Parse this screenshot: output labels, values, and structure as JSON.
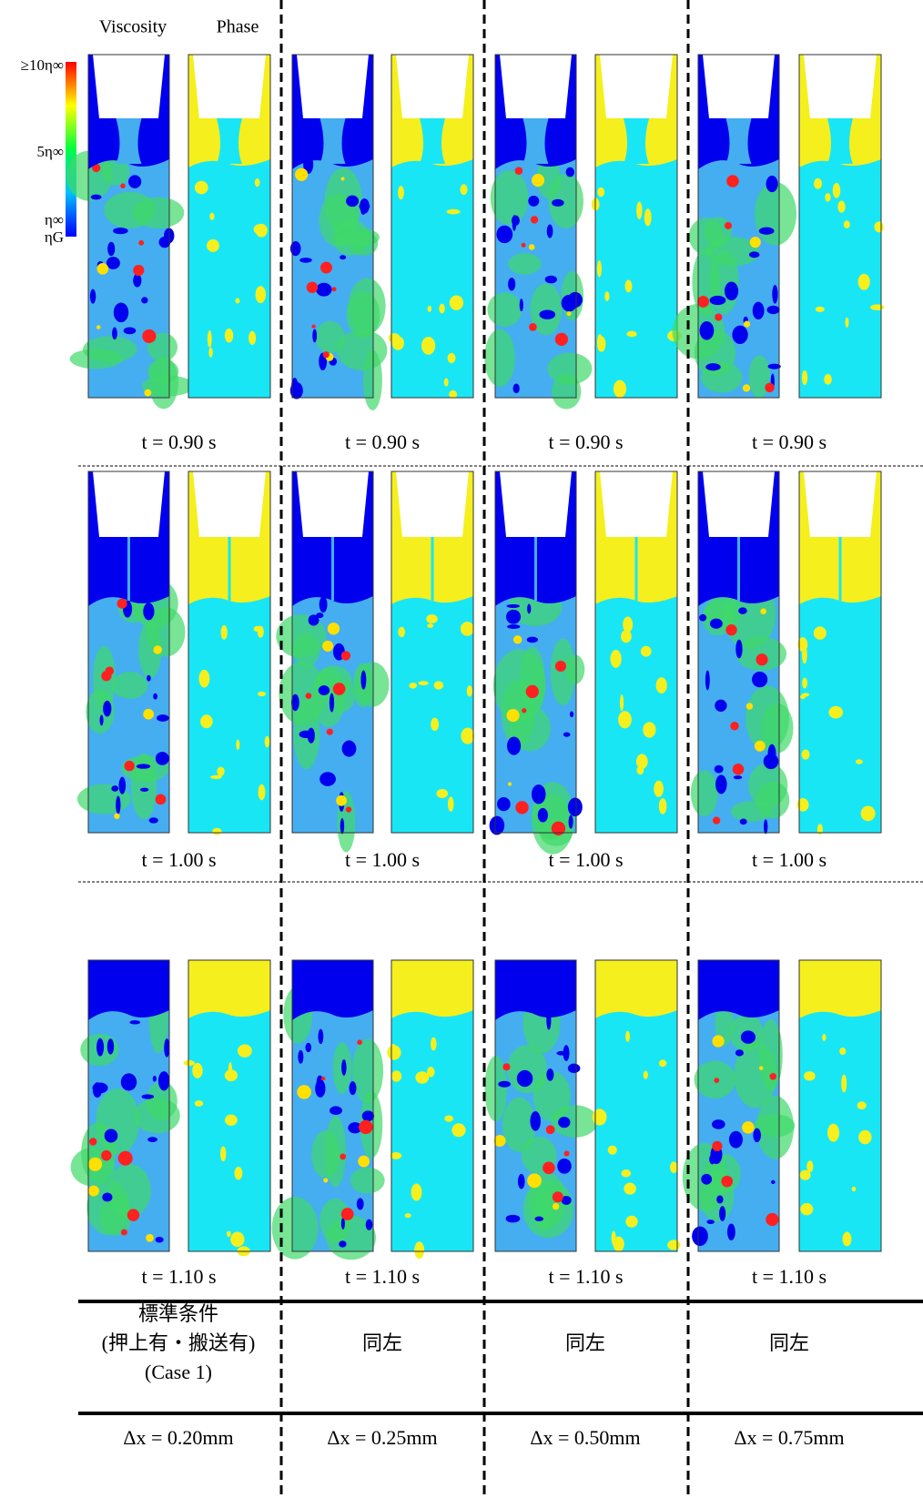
{
  "headers": [
    "Viscosity",
    "Phase"
  ],
  "colorbar": {
    "labels": [
      "≥10η∞",
      "5η∞",
      "η∞",
      "ηG"
    ]
  },
  "time_rows": [
    [
      "t = 0.90 s",
      "t = 0.90 s",
      "t = 0.90 s",
      "t = 0.90 s"
    ],
    [
      "t = 1.00 s",
      "t = 1.00 s",
      "t = 1.00 s",
      "t = 1.00 s"
    ],
    [
      "t = 1.10 s",
      "t = 1.10 s",
      "t = 1.10 s",
      "t = 1.10 s"
    ]
  ],
  "table": {
    "condition": [
      [
        "標準条件",
        "(押上有・搬送有)",
        "(Case 1)"
      ],
      [
        "同左"
      ],
      [
        "同左"
      ],
      [
        "同左"
      ]
    ],
    "resolution": [
      "Δx = 0.20mm",
      "Δx = 0.25mm",
      "Δx = 0.50mm",
      "Δx = 0.75mm"
    ]
  }
}
